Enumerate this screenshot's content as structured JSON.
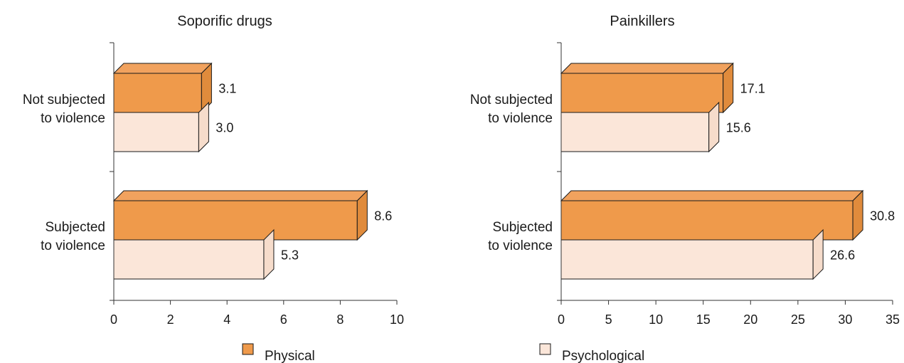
{
  "colors": {
    "physical": "#ef9a4b",
    "physical_top": "#f1a25e",
    "physical_side": "#e08b3c",
    "psychological": "#fbe6d9",
    "psychological_top": "#fcebe0",
    "psychological_side": "#f6dccb",
    "outline": "#1a1a1a",
    "axis": "#333333"
  },
  "legend": [
    {
      "key": "physical",
      "label": "Physical"
    },
    {
      "key": "psychological",
      "label": "Psychological"
    }
  ],
  "chart_data": [
    {
      "type": "bar",
      "orientation": "horizontal",
      "title": "Soporific drugs",
      "categories": [
        {
          "lines": [
            "Not subjected",
            "to violence"
          ]
        },
        {
          "lines": [
            "Subjected",
            "to violence"
          ]
        }
      ],
      "series": [
        {
          "name": "Physical",
          "key": "physical",
          "values": [
            3.1,
            8.6
          ],
          "labels": [
            "3.1",
            "8.6"
          ]
        },
        {
          "name": "Psychological",
          "key": "psychological",
          "values": [
            3.0,
            5.3
          ],
          "labels": [
            "3.0",
            "5.3"
          ]
        }
      ],
      "xlim": [
        0,
        10
      ],
      "xticks": [
        0,
        2,
        4,
        6,
        8,
        10
      ],
      "grid": false
    },
    {
      "type": "bar",
      "orientation": "horizontal",
      "title": "Painkillers",
      "categories": [
        {
          "lines": [
            "Not subjected",
            "to violence"
          ]
        },
        {
          "lines": [
            "Subjected",
            "to violence"
          ]
        }
      ],
      "series": [
        {
          "name": "Physical",
          "key": "physical",
          "values": [
            17.1,
            30.8
          ],
          "labels": [
            "17.1",
            "30.8"
          ]
        },
        {
          "name": "Psychological",
          "key": "psychological",
          "values": [
            15.6,
            26.6
          ],
          "labels": [
            "15.6",
            "26.6"
          ]
        }
      ],
      "xlim": [
        0,
        35
      ],
      "xticks": [
        0,
        5,
        10,
        15,
        20,
        25,
        30,
        35
      ],
      "grid": false
    }
  ]
}
